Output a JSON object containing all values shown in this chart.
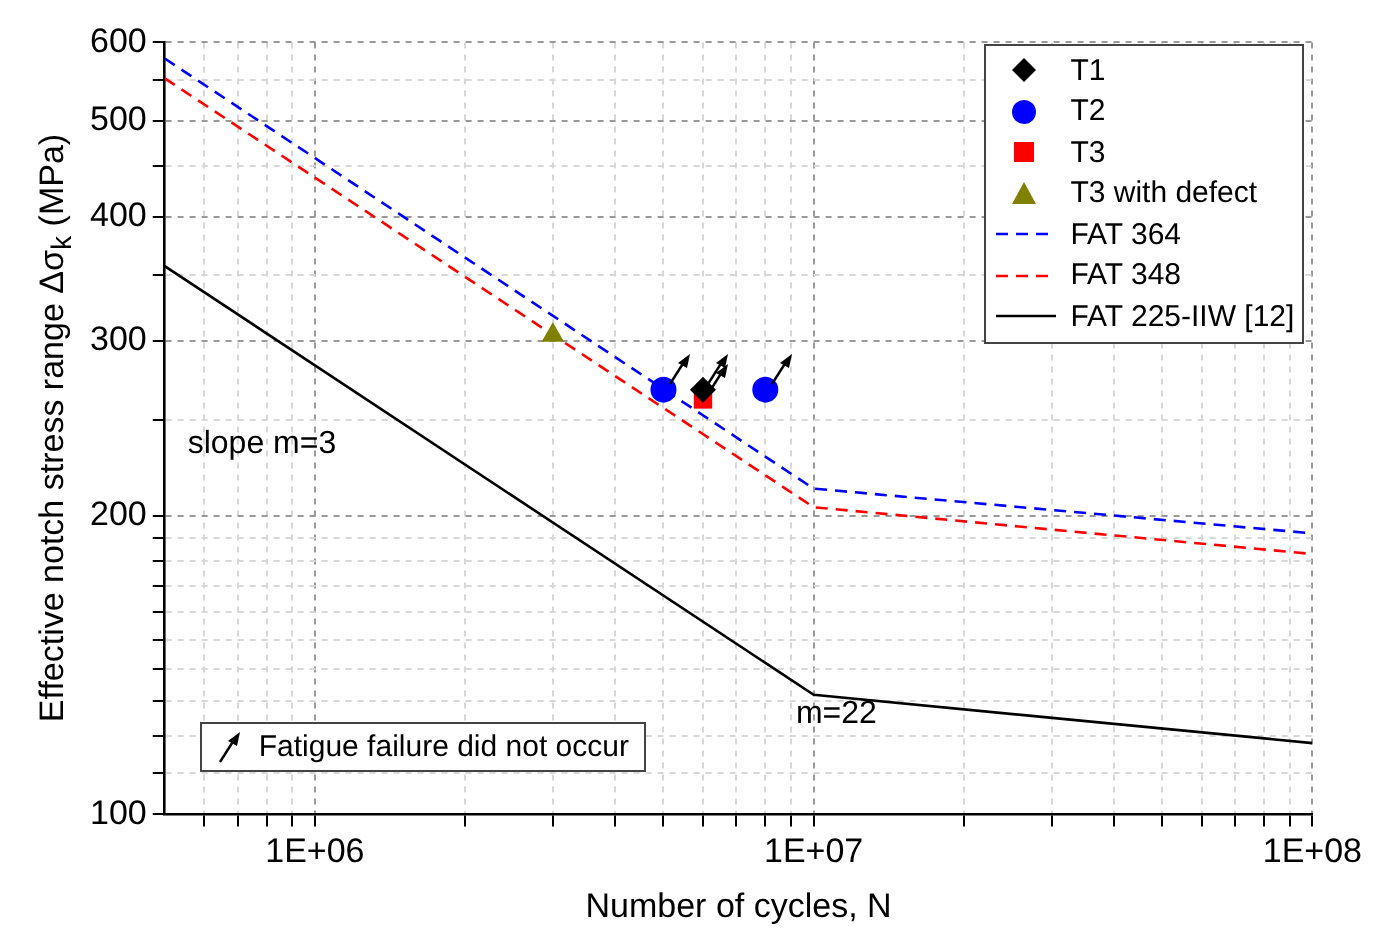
{
  "chart_data": {
    "type": "scatter",
    "xlabel": "Number of cycles, N",
    "ylabel": "Effective notch stress range Δσ$_{k}$ (MPa)",
    "log": "xy",
    "xlim": [
      500000,
      100000000
    ],
    "xticks": [
      {
        "value": 600000,
        "label": null
      },
      {
        "value": 700000,
        "label": null
      },
      {
        "value": 800000,
        "label": null
      },
      {
        "value": 900000,
        "label": null
      },
      {
        "value": 1000000,
        "label": "1E+06"
      },
      {
        "value": 2000000,
        "label": null
      },
      {
        "value": 3000000,
        "label": null
      },
      {
        "value": 4000000,
        "label": null
      },
      {
        "value": 5000000,
        "label": null
      },
      {
        "value": 6000000,
        "label": null
      },
      {
        "value": 7000000,
        "label": null
      },
      {
        "value": 8000000,
        "label": null
      },
      {
        "value": 9000000,
        "label": null
      },
      {
        "value": 10000000,
        "label": "1E+07"
      },
      {
        "value": 20000000,
        "label": null
      },
      {
        "value": 30000000,
        "label": null
      },
      {
        "value": 40000000,
        "label": null
      },
      {
        "value": 50000000,
        "label": null
      },
      {
        "value": 60000000,
        "label": null
      },
      {
        "value": 70000000,
        "label": null
      },
      {
        "value": 80000000,
        "label": null
      },
      {
        "value": 90000000,
        "label": null
      },
      {
        "value": 100000000,
        "label": "1E+08"
      }
    ],
    "ylim": [
      100,
      600
    ],
    "yticks": [
      100,
      {
        "value": 110,
        "label": null
      },
      {
        "value": 120,
        "label": null
      },
      {
        "value": 130,
        "label": null
      },
      {
        "value": 140,
        "label": null
      },
      {
        "value": 150,
        "label": null
      },
      {
        "value": 160,
        "label": null
      },
      {
        "value": 170,
        "label": null
      },
      {
        "value": 180,
        "label": null
      },
      {
        "value": 190,
        "label": null
      },
      200,
      {
        "value": 250,
        "label": null
      },
      300,
      {
        "value": 350,
        "label": null
      },
      400,
      {
        "value": 450,
        "label": null
      },
      500,
      {
        "value": 550,
        "label": null
      },
      600
    ],
    "grid": true,
    "legend": "top right",
    "series": [
      {
        "name": "T1",
        "color": "#000000",
        "marker": "diamond",
        "x": [
          6000000
        ],
        "values": [
          268
        ]
      },
      {
        "name": "T2",
        "color": "#0000ff",
        "marker": "circle",
        "x": [
          5000000,
          8000000
        ],
        "values": [
          268,
          268
        ]
      },
      {
        "name": "T3",
        "color": "#ff0000",
        "marker": "square",
        "x": [
          6000000
        ],
        "values": [
          262
        ]
      },
      {
        "name": "T3 with defect",
        "color": "#808000",
        "marker": "triangle",
        "x": [
          3000000
        ],
        "values": [
          304
        ]
      },
      {
        "name": "FAT 364",
        "type": "line",
        "color": "#0000ff",
        "line_style": "dashed",
        "marker": "none",
        "x": [
          500000,
          10000000,
          100000000
        ],
        "values": [
          578,
          213,
          192
        ]
      },
      {
        "name": "FAT 348",
        "type": "line",
        "color": "#ff0000",
        "line_style": "dashed",
        "marker": "none",
        "x": [
          500000,
          10000000,
          100000000
        ],
        "values": [
          552,
          204,
          183
        ]
      },
      {
        "name": "FAT 225-IIW [12]",
        "type": "line",
        "color": "#000000",
        "line_style": "solid",
        "marker": "none",
        "x": [
          500000,
          10000000,
          100000000
        ],
        "values": [
          357,
          132,
          118
        ]
      }
    ],
    "annotations": [
      "slope m=3",
      "m=22",
      "Fatigue failure did not occur"
    ]
  }
}
